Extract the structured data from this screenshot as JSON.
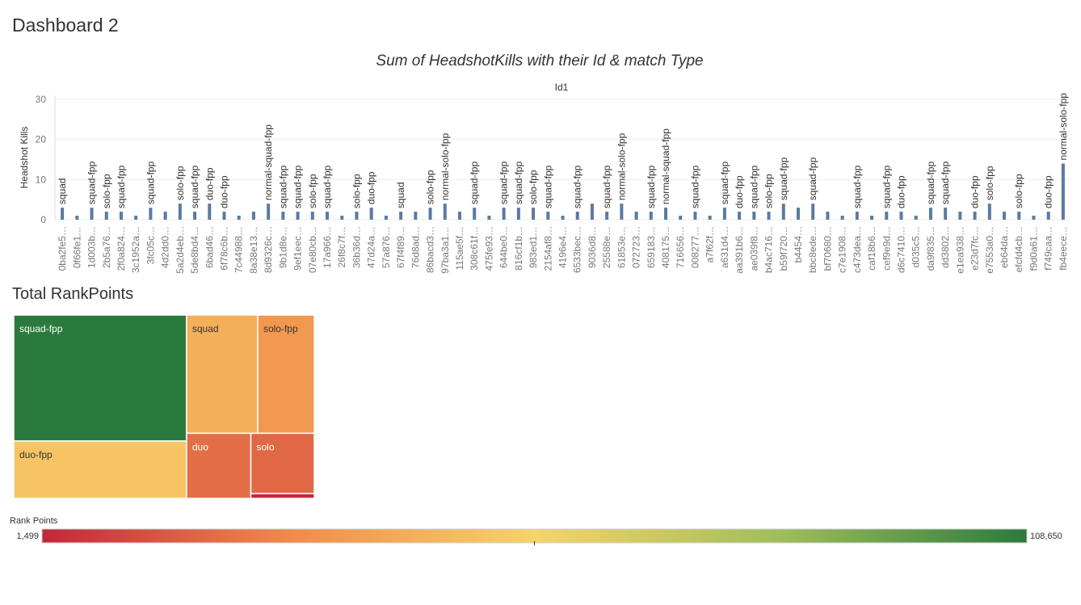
{
  "title": "Dashboard 2",
  "chart_data": [
    {
      "type": "bar",
      "title": "Sum of HeadshotKills with their Id & match Type",
      "x_label": "Id1",
      "y_label": "Headshot Kills",
      "color": "#5b7aa1",
      "ylim": [
        0,
        31
      ],
      "yticks": [
        0,
        10,
        20,
        30
      ],
      "grid": true,
      "categories": [
        "0ba2fe5…",
        "0f66fe1…",
        "1d003b…",
        "2b5a76…",
        "2f0a824…",
        "3c1952a…",
        "3fc05c…",
        "4d2dd0…",
        "5a2d4eb…",
        "5de8bd4…",
        "6bad46…",
        "6f78c6b…",
        "7c44988…",
        "8a38e13…",
        "8d9326c…",
        "9b1d8e…",
        "9ef1eec…",
        "07e80cb…",
        "17a966…",
        "26f8c7f…",
        "36b36d…",
        "47d24a…",
        "57a876…",
        "67f4f89…",
        "76d8ad…",
        "86bacd3…",
        "97ba3a1…",
        "115ae5f…",
        "308c61f…",
        "475fe93…",
        "644be0…",
        "816cf1b…",
        "983ed1…",
        "2154af8…",
        "4196e4…",
        "6533bec…",
        "9036d8…",
        "25588e…",
        "61853e…",
        "072723…",
        "659183…",
        "408175…",
        "716656…",
        "008277…",
        "a7f62f…",
        "a631d4…",
        "aa391b6…",
        "ae039f8…",
        "b4ac716…",
        "b59f720…",
        "b4454…",
        "bbc8ede…",
        "bf70680…",
        "c7e1908…",
        "c473dea…",
        "caf18b6…",
        "cef9e9d…",
        "d6c7410…",
        "d035c5…",
        "da9f835…",
        "dd3802…",
        "e1ea938…",
        "e23d7fc…",
        "e7553a0…",
        "eb64da…",
        "efcfd4cb…",
        "f9d0a61…",
        "f749caa…",
        "fb4eece…"
      ],
      "values": [
        3,
        1,
        3,
        2,
        2,
        1,
        3,
        2,
        4,
        2,
        4,
        2,
        1,
        2,
        4,
        2,
        2,
        2,
        2,
        1,
        2,
        3,
        1,
        2,
        2,
        3,
        4,
        2,
        3,
        1,
        3,
        3,
        3,
        2,
        1,
        2,
        4,
        2,
        4,
        2,
        2,
        3,
        1,
        2,
        1,
        3,
        2,
        2,
        2,
        4,
        3,
        4,
        2,
        1,
        2,
        1,
        2,
        2,
        1,
        3,
        3,
        2,
        2,
        4,
        2,
        2,
        1,
        2,
        14
      ],
      "bar_labels": [
        "squad",
        null,
        "squad-fpp",
        "solo-fpp",
        "squad-fpp",
        null,
        "squad-fpp",
        null,
        "solo-fpp",
        "squad-fpp",
        "duo-fpp",
        "duo-fpp",
        null,
        null,
        "normal-squad-fpp",
        "squad-fpp",
        "squad-fpp",
        "solo-fpp",
        "squad-fpp",
        null,
        "solo-fpp",
        "duo-fpp",
        null,
        "squad",
        null,
        "solo-fpp",
        "normal-solo-fpp",
        null,
        "squad-fpp",
        null,
        "squad-fpp",
        "squad-fpp",
        "solo-fpp",
        "squad-fpp",
        null,
        "squad-fpp",
        null,
        "squad-fpp",
        "normal-solo-fpp",
        null,
        "squad-fpp",
        "normal-squad-fpp",
        null,
        "squad-fpp",
        null,
        "squad-fpp",
        "duo-fpp",
        "squad-fpp",
        "solo-fpp",
        "squad-fpp",
        null,
        "squad-fpp",
        null,
        null,
        "squad-fpp",
        null,
        "squad-fpp",
        "duo-fpp",
        null,
        "squad-fpp",
        "squad-fpp",
        null,
        "duo-fpp",
        "solo-fpp",
        null,
        "solo-fpp",
        null,
        "duo-fpp",
        "normal-solo-fpp"
      ]
    },
    {
      "type": "treemap",
      "title": "Total RankPoints",
      "categories": [
        "squad-fpp",
        "duo-fpp",
        "squad",
        "solo-fpp",
        "duo",
        "solo",
        null
      ],
      "values": [
        108650,
        49450,
        42000,
        33400,
        20900,
        19100,
        1499
      ],
      "colorscale": {
        "title": "Rank Points",
        "min": {
          "value": 1499,
          "label": "1,499"
        },
        "max": {
          "value": 108650,
          "label": "108,650"
        },
        "colors": [
          "#c4263a",
          "#f08a4b",
          "#f7d36b",
          "#9fbe5a",
          "#2b7a3d"
        ]
      }
    }
  ]
}
